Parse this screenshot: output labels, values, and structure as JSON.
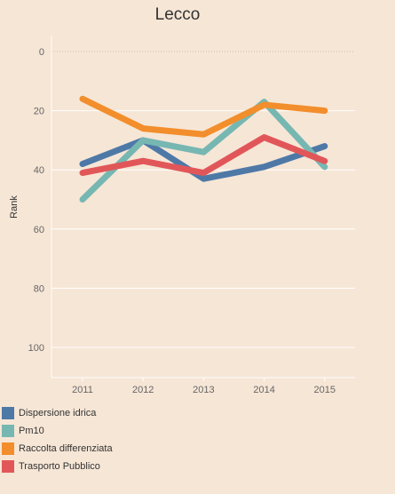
{
  "chart_data": {
    "type": "line",
    "title": "Lecco",
    "xlabel": "",
    "ylabel": "Rank",
    "x": [
      "2011",
      "2012",
      "2013",
      "2014",
      "2015"
    ],
    "ylim": [
      0,
      110
    ],
    "y_inverted": true,
    "yticks": [
      0,
      20,
      40,
      60,
      80,
      100
    ],
    "grid": true,
    "legend_position": "bottom-left",
    "series": [
      {
        "name": "Dispersione idrica",
        "color": "#4e79a7",
        "values": [
          38,
          30,
          43,
          39,
          32
        ]
      },
      {
        "name": "Pm10",
        "color": "#76b7b2",
        "values": [
          50,
          30,
          34,
          17,
          39
        ]
      },
      {
        "name": "Raccolta differenziata",
        "color": "#f28e2b",
        "values": [
          16,
          26,
          28,
          18,
          20
        ]
      },
      {
        "name": "Trasporto Pubblico",
        "color": "#e15759",
        "values": [
          41,
          37,
          41,
          29,
          37
        ]
      }
    ]
  }
}
